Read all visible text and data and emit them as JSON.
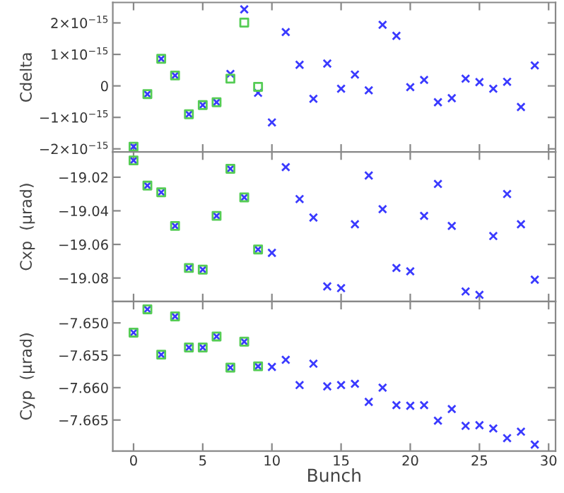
{
  "chart_data": [
    {
      "type": "scatter",
      "ylabel": "Cdelta",
      "x": [
        0,
        1,
        2,
        3,
        4,
        5,
        6,
        7,
        8,
        9,
        10,
        11,
        12,
        13,
        14,
        15,
        16,
        17,
        18,
        19,
        20,
        21,
        22,
        23,
        24,
        25,
        26,
        27,
        28,
        29
      ],
      "xlim": [
        -1.5,
        30.5
      ],
      "xticks": [
        0,
        5,
        10,
        15,
        20,
        25,
        30
      ],
      "ylim": [
        -2.1e-15,
        2.65e-15
      ],
      "yticks": [
        {
          "value": -2e-15,
          "label": "−2×10$^{−15}$"
        },
        {
          "value": -1e-15,
          "label": "−1×10$^{−15}$"
        },
        {
          "value": 0,
          "label": "0"
        },
        {
          "value": 1e-15,
          "label": "1×10$^{−15}$"
        },
        {
          "value": 2e-15,
          "label": "2×10$^{−15}$"
        }
      ],
      "tick_labels": "y",
      "series": [
        {
          "color": "#3a3aff",
          "marker": "cross",
          "values": [
            -1.93e-15,
            -2.6e-16,
            8.6e-16,
            3.3e-16,
            -9e-16,
            -6.1e-16,
            -5.2e-16,
            3.8e-16,
            2.43e-15,
            -2.2e-16,
            -1.16e-15,
            1.71e-15,
            6.7e-16,
            -4.1e-16,
            7.1e-16,
            -9e-17,
            3.6e-16,
            -1.4e-16,
            1.94e-15,
            1.59e-15,
            -4e-17,
            1.9e-16,
            -5.2e-16,
            -3.9e-16,
            2.3e-16,
            1.2e-16,
            -9e-17,
            1.3e-16,
            -6.7e-16,
            6.5e-16
          ]
        },
        {
          "color": "#55cc55",
          "marker": "square",
          "x": [
            0,
            1,
            2,
            3,
            4,
            5,
            6,
            7,
            8,
            9
          ],
          "values": [
            -1.93e-15,
            -2.6e-16,
            8.6e-16,
            3.3e-16,
            -9e-16,
            -6.1e-16,
            -5.2e-16,
            2.3e-16,
            2.01e-15,
            -3e-17
          ]
        }
      ]
    },
    {
      "type": "scatter",
      "ylabel": "Cxp  (μrad)",
      "x": [
        0,
        1,
        2,
        3,
        4,
        5,
        6,
        7,
        8,
        9,
        10,
        11,
        12,
        13,
        14,
        15,
        16,
        17,
        18,
        19,
        20,
        21,
        22,
        23,
        24,
        25,
        26,
        27,
        28,
        29
      ],
      "xlim": [
        -1.5,
        30.5
      ],
      "xticks": [
        0,
        5,
        10,
        15,
        20,
        25,
        30
      ],
      "ylim": [
        -19.094,
        -19.005
      ],
      "yticks": [
        {
          "value": -19.08,
          "label": "−19.08"
        },
        {
          "value": -19.06,
          "label": "−19.06"
        },
        {
          "value": -19.04,
          "label": "−19.04"
        },
        {
          "value": -19.02,
          "label": "−19.02"
        }
      ],
      "tick_labels": "y",
      "series": [
        {
          "color": "#3a3aff",
          "marker": "cross",
          "values": [
            -19.01,
            -19.025,
            -19.029,
            -19.049,
            -19.074,
            -19.075,
            -19.043,
            -19.015,
            -19.032,
            -19.063,
            -19.065,
            -19.014,
            -19.033,
            -19.044,
            -19.085,
            -19.086,
            -19.048,
            -19.019,
            -19.039,
            -19.074,
            -19.076,
            -19.043,
            -19.024,
            -19.049,
            -19.088,
            -19.09,
            -19.055,
            -19.03,
            -19.048,
            -19.081
          ]
        },
        {
          "color": "#55cc55",
          "marker": "square",
          "x": [
            0,
            1,
            2,
            3,
            4,
            5,
            6,
            7,
            8,
            9
          ],
          "values": [
            -19.01,
            -19.025,
            -19.029,
            -19.049,
            -19.074,
            -19.075,
            -19.043,
            -19.015,
            -19.032,
            -19.063
          ]
        }
      ]
    },
    {
      "type": "scatter",
      "ylabel": "Cyp  (μrad)",
      "xlabel": "Bunch",
      "x": [
        0,
        1,
        2,
        3,
        4,
        5,
        6,
        7,
        8,
        9,
        10,
        11,
        12,
        13,
        14,
        15,
        16,
        17,
        18,
        19,
        20,
        21,
        22,
        23,
        24,
        25,
        26,
        27,
        28,
        29
      ],
      "xlim": [
        -1.5,
        30.5
      ],
      "xticks": [
        0,
        5,
        10,
        15,
        20,
        25,
        30
      ],
      "ylim": [
        -7.6698,
        -7.6467
      ],
      "yticks": [
        {
          "value": -7.665,
          "label": "−7.665"
        },
        {
          "value": -7.66,
          "label": "−7.660"
        },
        {
          "value": -7.655,
          "label": "−7.655"
        },
        {
          "value": -7.65,
          "label": "−7.650"
        }
      ],
      "series": [
        {
          "color": "#3a3aff",
          "marker": "cross",
          "values": [
            -7.6515,
            -7.6479,
            -7.6549,
            -7.649,
            -7.6538,
            -7.6538,
            -7.6521,
            -7.6569,
            -7.6529,
            -7.6567,
            -7.6568,
            -7.6557,
            -7.6596,
            -7.6563,
            -7.6598,
            -7.6596,
            -7.6594,
            -7.6622,
            -7.66,
            -7.6627,
            -7.6628,
            -7.6627,
            -7.6651,
            -7.6633,
            -7.6659,
            -7.6658,
            -7.6663,
            -7.6678,
            -7.6668,
            -7.6688
          ]
        },
        {
          "color": "#55cc55",
          "marker": "square",
          "x": [
            0,
            1,
            2,
            3,
            4,
            5,
            6,
            7,
            8,
            9
          ],
          "values": [
            -7.6515,
            -7.6479,
            -7.6549,
            -7.649,
            -7.6538,
            -7.6538,
            -7.6521,
            -7.6569,
            -7.6529,
            -7.6567
          ]
        }
      ]
    }
  ]
}
